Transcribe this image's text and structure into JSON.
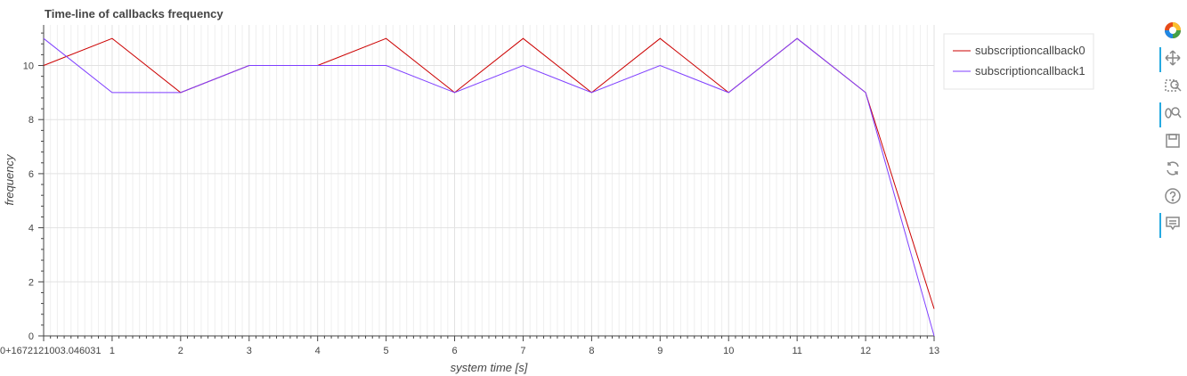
{
  "chart_data": {
    "type": "line",
    "title": "Time-line of callbacks frequency",
    "xlabel": "system time [s]",
    "ylabel": "frequency",
    "x_origin_label": "0+1672121003.046031",
    "xlim": [
      0,
      13
    ],
    "ylim": [
      0,
      11.5
    ],
    "x_ticks": [
      1,
      2,
      3,
      4,
      5,
      6,
      7,
      8,
      9,
      10,
      11,
      12,
      13
    ],
    "y_ticks": [
      0,
      2,
      4,
      6,
      8,
      10
    ],
    "grid": true,
    "legend_position": "top-right",
    "x": [
      0,
      1,
      2,
      3,
      4,
      5,
      6,
      7,
      8,
      9,
      10,
      11,
      12,
      13
    ],
    "series": [
      {
        "name": "subscriptioncallback0",
        "color": "#cc0000",
        "values": [
          10,
          11,
          9,
          10,
          10,
          11,
          9,
          11,
          9,
          11,
          9,
          11,
          9,
          1
        ]
      },
      {
        "name": "subscriptioncallback1",
        "color": "#7f3fff",
        "values": [
          11,
          9,
          9,
          10,
          10,
          10,
          9,
          10,
          9,
          10,
          9,
          11,
          9,
          0
        ]
      }
    ]
  },
  "toolbar": {
    "tools": [
      {
        "icon": "bokeh-logo-icon",
        "active": false
      },
      {
        "icon": "pan-icon",
        "active": true
      },
      {
        "icon": "box-zoom-icon",
        "active": false
      },
      {
        "icon": "wheel-zoom-icon",
        "active": true
      },
      {
        "icon": "save-icon",
        "active": false
      },
      {
        "icon": "reset-icon",
        "active": false
      },
      {
        "icon": "help-icon",
        "active": false
      },
      {
        "icon": "hover-icon",
        "active": true
      }
    ]
  }
}
